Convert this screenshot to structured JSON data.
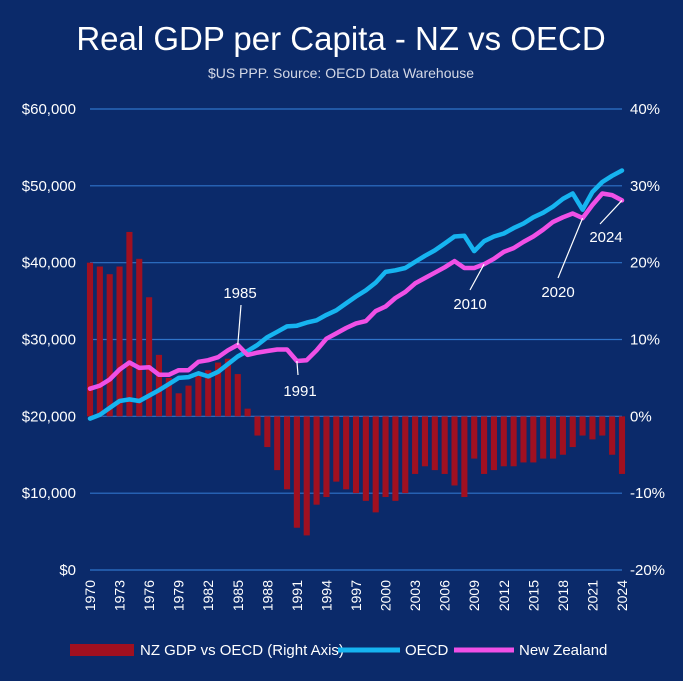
{
  "chart_data": {
    "type": "bar+line",
    "title": "Real GDP per Capita - NZ vs OECD",
    "subtitle": "$US PPP. Source: OECD Data Warehouse",
    "colors": {
      "background": "#0b2a6a",
      "bar": "#a01020",
      "oecd": "#16b4f0",
      "nz": "#f050e6",
      "grid": "#2f73c9"
    },
    "x_tick_labels": [
      "1970",
      "1973",
      "1976",
      "1979",
      "1982",
      "1985",
      "1988",
      "1991",
      "1994",
      "1997",
      "2000",
      "2003",
      "2006",
      "2009",
      "2012",
      "2015",
      "2018",
      "2021",
      "2024"
    ],
    "y_left": {
      "ylim": [
        0,
        60000
      ],
      "tick_values": [
        0,
        10000,
        20000,
        30000,
        40000,
        50000,
        60000
      ],
      "tick_labels": [
        "$0",
        "$10,000",
        "$20,000",
        "$30,000",
        "$40,000",
        "$50,000",
        "$60,000"
      ]
    },
    "y_right": {
      "ylim": [
        -20,
        40
      ],
      "tick_values": [
        -20,
        -10,
        0,
        10,
        20,
        30,
        40
      ],
      "tick_labels": [
        "-20%",
        "-10%",
        "0%",
        "10%",
        "20%",
        "30%",
        "40%"
      ]
    },
    "years": [
      1970,
      1971,
      1972,
      1973,
      1974,
      1975,
      1976,
      1977,
      1978,
      1979,
      1980,
      1981,
      1982,
      1983,
      1984,
      1985,
      1986,
      1987,
      1988,
      1989,
      1990,
      1991,
      1992,
      1993,
      1994,
      1995,
      1996,
      1997,
      1998,
      1999,
      2000,
      2001,
      2002,
      2003,
      2004,
      2005,
      2006,
      2007,
      2008,
      2009,
      2010,
      2011,
      2012,
      2013,
      2014,
      2015,
      2016,
      2017,
      2018,
      2019,
      2020,
      2021,
      2022,
      2023,
      2024
    ],
    "series": [
      {
        "name": "NZ GDP vs OECD (Right Axis)",
        "axis": "right",
        "type": "bar",
        "values": [
          20,
          19.5,
          18.5,
          19.5,
          24,
          20.5,
          15.5,
          8,
          5,
          3,
          4,
          5.5,
          6,
          7,
          7.5,
          5.5,
          1,
          -2.5,
          -4,
          -7,
          -9.5,
          -14.5,
          -15.5,
          -11.5,
          -10.5,
          -8.5,
          -9.5,
          -10,
          -11,
          -12.5,
          -10.5,
          -11,
          -10,
          -7.5,
          -6.5,
          -7,
          -7.5,
          -9,
          -10.5,
          -5.5,
          -7.5,
          -7,
          -6.5,
          -6.5,
          -6,
          -6,
          -5.5,
          -5.5,
          -5,
          -4,
          -2.5,
          -3,
          -2.5,
          -5,
          -7.5
        ]
      },
      {
        "name": "OECD",
        "axis": "left",
        "type": "line",
        "values": [
          19700,
          20200,
          21100,
          22000,
          22200,
          22000,
          22700,
          23400,
          24200,
          25000,
          25100,
          25600,
          25200,
          25800,
          26800,
          27800,
          28500,
          29300,
          30300,
          31000,
          31700,
          31800,
          32200,
          32500,
          33200,
          33800,
          34700,
          35600,
          36400,
          37400,
          38800,
          39000,
          39300,
          40100,
          40900,
          41600,
          42500,
          43400,
          43500,
          41500,
          42800,
          43400,
          43800,
          44500,
          45100,
          45900,
          46500,
          47300,
          48300,
          49000,
          46900,
          49200,
          50500,
          51300,
          52000
        ]
      },
      {
        "name": "New Zealand",
        "axis": "left",
        "type": "line",
        "values": [
          23600,
          24000,
          24800,
          26100,
          27000,
          26300,
          26400,
          25400,
          25400,
          26000,
          26000,
          27100,
          27300,
          27700,
          28600,
          29300,
          28000,
          28300,
          28500,
          28700,
          28700,
          27200,
          27300,
          28600,
          30100,
          30800,
          31500,
          32100,
          32400,
          33700,
          34300,
          35400,
          36200,
          37300,
          38000,
          38700,
          39400,
          40200,
          39300,
          39300,
          39800,
          40500,
          41400,
          41900,
          42700,
          43400,
          44300,
          45300,
          45900,
          46400,
          45800,
          47500,
          49000,
          48800,
          48100
        ]
      }
    ],
    "annotations": [
      {
        "label": "1985",
        "year": 1985,
        "series": "New Zealand"
      },
      {
        "label": "1991",
        "year": 1991,
        "series": "New Zealand"
      },
      {
        "label": "2010",
        "year": 2010,
        "series": "New Zealand"
      },
      {
        "label": "2020",
        "year": 2020,
        "series": "New Zealand"
      },
      {
        "label": "2024",
        "year": 2024,
        "series": "New Zealand"
      }
    ],
    "legend": [
      "NZ GDP vs OECD (Right Axis)",
      "OECD",
      "New Zealand"
    ],
    "legend_position": "bottom",
    "grid": true
  }
}
